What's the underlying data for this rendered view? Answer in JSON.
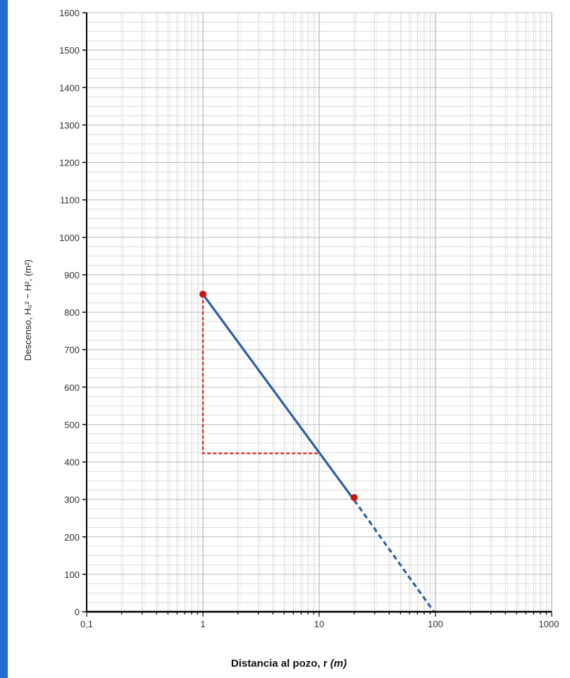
{
  "frame": {
    "accent_color": "#1e6fd0"
  },
  "chart_data": {
    "type": "line",
    "xscale": "log",
    "xlim": [
      0.1,
      1000
    ],
    "ylim": [
      0,
      1600
    ],
    "grid": true,
    "yticks": [
      0,
      100,
      200,
      300,
      400,
      500,
      600,
      700,
      800,
      900,
      1000,
      1100,
      1200,
      1300,
      1400,
      1500,
      1600
    ],
    "ytick_labels": [
      "0",
      "100",
      "200",
      "300",
      "400",
      "500",
      "600",
      "700",
      "800",
      "900",
      "1000",
      "1100",
      "1200",
      "1300",
      "1400",
      "1500",
      "1600"
    ],
    "xticks": [
      0.1,
      1,
      10,
      100,
      1000
    ],
    "xtick_labels": [
      "0,1",
      "1",
      "10",
      "100",
      "1000"
    ],
    "xlabel": {
      "main": "Distancia al pozo, r ",
      "unit": "(m)"
    },
    "ylabel": "Descenso, H₀² − H², (m²)",
    "series": [
      {
        "style": "solid",
        "color": "#2e5fa3",
        "x": [
          1,
          20
        ],
        "y": [
          848,
          298
        ]
      },
      {
        "style": "dashed",
        "color": "#2e5fa3",
        "x": [
          20,
          97
        ],
        "y": [
          298,
          0
        ]
      }
    ],
    "points": [
      {
        "x": 1,
        "y": 848,
        "color": "#cc1111"
      },
      {
        "x": 20,
        "y": 305,
        "color": "#cc1111"
      }
    ],
    "annotations": [
      {
        "type": "dashed-guide",
        "color": "#dd2222",
        "x": [
          1,
          1,
          10
        ],
        "y": [
          848,
          423,
          423
        ]
      }
    ]
  }
}
